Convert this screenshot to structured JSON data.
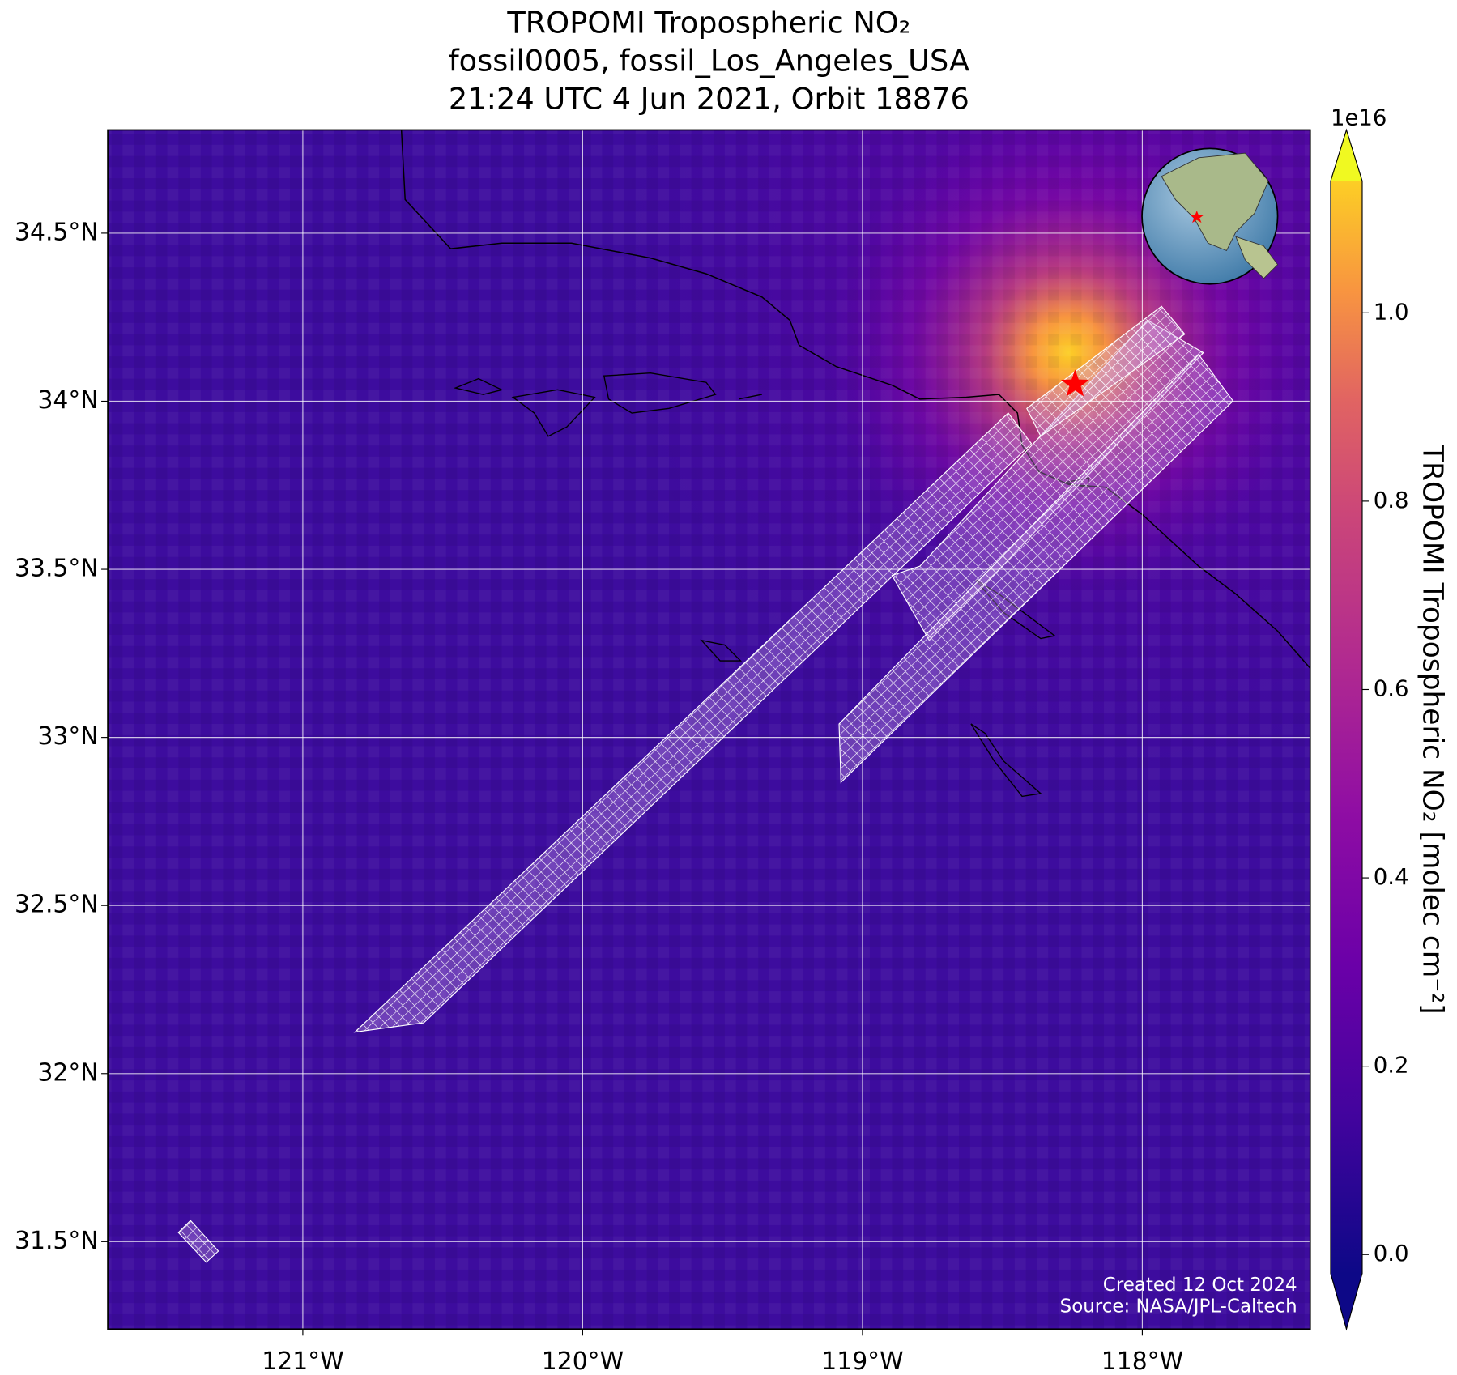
{
  "chart_data": {
    "type": "map",
    "title": [
      "TROPOMI Tropospheric NO₂",
      "fossil0005, fossil_Los_Angeles_USA",
      "21:24 UTC 4 Jun 2021, Orbit 18876"
    ],
    "xlim": [
      -121.697,
      -117.4
    ],
    "ylim": [
      31.24,
      34.807
    ],
    "xticks": [
      {
        "value": -121,
        "label": "121°W"
      },
      {
        "value": -120,
        "label": "120°W"
      },
      {
        "value": -119,
        "label": "119°W"
      },
      {
        "value": -118,
        "label": "118°W"
      }
    ],
    "yticks": [
      {
        "value": 31.5,
        "label": "31.5°N"
      },
      {
        "value": 32,
        "label": "32°N"
      },
      {
        "value": 32.5,
        "label": "32.5°N"
      },
      {
        "value": 33,
        "label": "33°N"
      },
      {
        "value": 33.5,
        "label": "33.5°N"
      },
      {
        "value": 34,
        "label": "34°N"
      },
      {
        "value": 34.5,
        "label": "34.5°N"
      }
    ],
    "grid": true,
    "target": {
      "lon": -118.24,
      "lat": 34.05,
      "color": "#ff0000"
    },
    "colorbar": {
      "label": "TROPOMI Tropospheric NO₂ [molec cm⁻²]",
      "exponent": "1e16",
      "lim": [
        -0.02,
        1.14
      ],
      "ticks": [
        {
          "value": 0,
          "label": "0.0"
        },
        {
          "value": 0.2,
          "label": "0.2"
        },
        {
          "value": 0.4,
          "label": "0.4"
        },
        {
          "value": 0.6,
          "label": "0.6"
        },
        {
          "value": 0.8,
          "label": "0.8"
        },
        {
          "value": 1,
          "label": "1.0"
        }
      ]
    },
    "credits": [
      "Created 12 Oct 2024",
      "Source: NASA/JPL-Caltech"
    ]
  }
}
